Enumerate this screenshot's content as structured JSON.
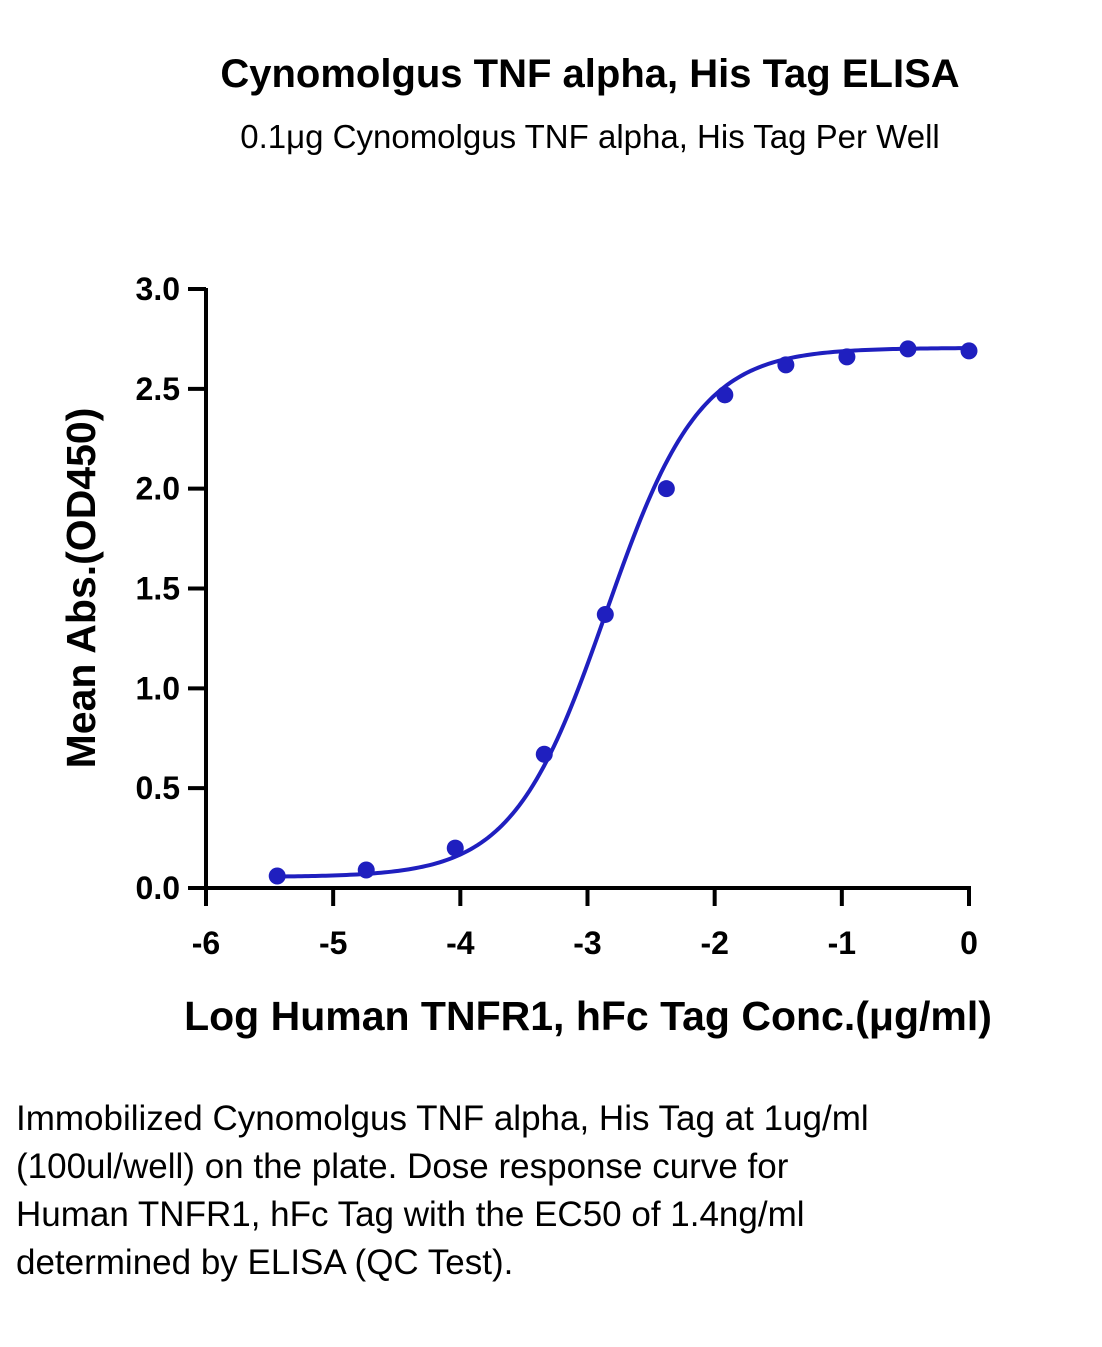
{
  "chart_data": {
    "type": "scatter",
    "title": "Cynomolgus TNF alpha, His Tag ELISA",
    "subtitle": "0.1μg Cynomolgus TNF alpha, His Tag Per Well",
    "xlabel": "Log Human TNFR1, hFc Tag Conc.(μg/ml)",
    "ylabel": "Mean Abs.(OD450)",
    "xlim": [
      -6,
      0
    ],
    "ylim": [
      0,
      3
    ],
    "xticks": [
      "-6",
      "-5",
      "-4",
      "-3",
      "-2",
      "-1",
      "0"
    ],
    "yticks": [
      "0.0",
      "0.5",
      "1.0",
      "1.5",
      "2.0",
      "2.5",
      "3.0"
    ],
    "grid": false,
    "color": "#1f1fbf",
    "series": [
      {
        "x": [
          -5.44,
          -4.74,
          -4.04,
          -3.34,
          -2.86,
          -2.38,
          -1.92,
          -1.44,
          -0.96,
          -0.48,
          0.0
        ],
        "y": [
          0.06,
          0.09,
          0.2,
          0.67,
          1.37,
          2.0,
          2.47,
          2.62,
          2.66,
          2.7,
          2.69
        ],
        "fit": "4PL",
        "fit_params": {
          "bottom": 0.055,
          "top": 2.705,
          "logEC50": -2.854,
          "hill": 1.18
        }
      }
    ]
  },
  "caption": "Immobilized Cynomolgus TNF alpha, His Tag at 1ug/ml (100ul/well) on the plate. Dose response curve for Human TNFR1, hFc Tag with the EC50 of 1.4ng/ml determined by ELISA (QC Test)."
}
